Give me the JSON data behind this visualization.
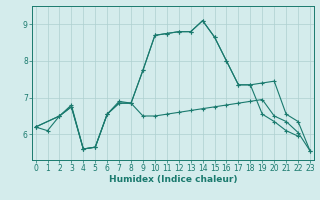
{
  "xlabel": "Humidex (Indice chaleur)",
  "x_ticks": [
    0,
    1,
    2,
    3,
    4,
    5,
    6,
    7,
    8,
    9,
    10,
    11,
    12,
    13,
    14,
    15,
    16,
    17,
    18,
    19,
    20,
    21,
    22,
    23
  ],
  "y_ticks": [
    6,
    7,
    8,
    9
  ],
  "ylim": [
    5.3,
    9.5
  ],
  "xlim": [
    -0.3,
    23.3
  ],
  "bg_color": "#d4ecec",
  "grid_color": "#aed0d0",
  "line_color": "#1a7a6e",
  "line1_x": [
    0,
    1,
    2,
    3,
    4,
    5,
    6,
    7,
    8,
    9,
    10,
    11,
    12,
    13,
    14,
    15,
    16,
    17,
    18,
    19,
    20,
    21,
    22
  ],
  "line1_y": [
    6.2,
    6.1,
    6.5,
    6.8,
    5.6,
    5.65,
    6.55,
    6.9,
    6.85,
    7.75,
    8.7,
    8.75,
    8.8,
    8.8,
    9.1,
    8.65,
    8.0,
    7.35,
    7.35,
    6.55,
    6.35,
    6.1,
    5.95
  ],
  "line2_x": [
    0,
    2,
    3,
    4,
    5,
    6,
    7,
    8,
    9,
    10,
    11,
    12,
    13,
    14,
    15,
    16,
    17,
    18,
    19,
    20,
    21,
    22,
    23
  ],
  "line2_y": [
    6.2,
    6.5,
    6.75,
    5.6,
    5.65,
    6.55,
    6.85,
    6.85,
    6.5,
    6.5,
    6.55,
    6.6,
    6.65,
    6.7,
    6.75,
    6.8,
    6.85,
    6.9,
    6.95,
    6.5,
    6.35,
    6.05,
    5.55
  ],
  "line3_x": [
    0,
    2,
    3,
    4,
    5,
    6,
    7,
    8,
    9,
    10,
    11,
    12,
    13,
    14,
    15,
    16,
    17,
    18,
    19,
    20,
    21,
    22,
    23
  ],
  "line3_y": [
    6.2,
    6.5,
    6.75,
    5.6,
    5.65,
    6.55,
    6.85,
    6.85,
    7.75,
    8.7,
    8.75,
    8.8,
    8.8,
    9.1,
    8.65,
    8.0,
    7.35,
    7.35,
    7.4,
    7.45,
    6.55,
    6.35,
    5.55
  ]
}
